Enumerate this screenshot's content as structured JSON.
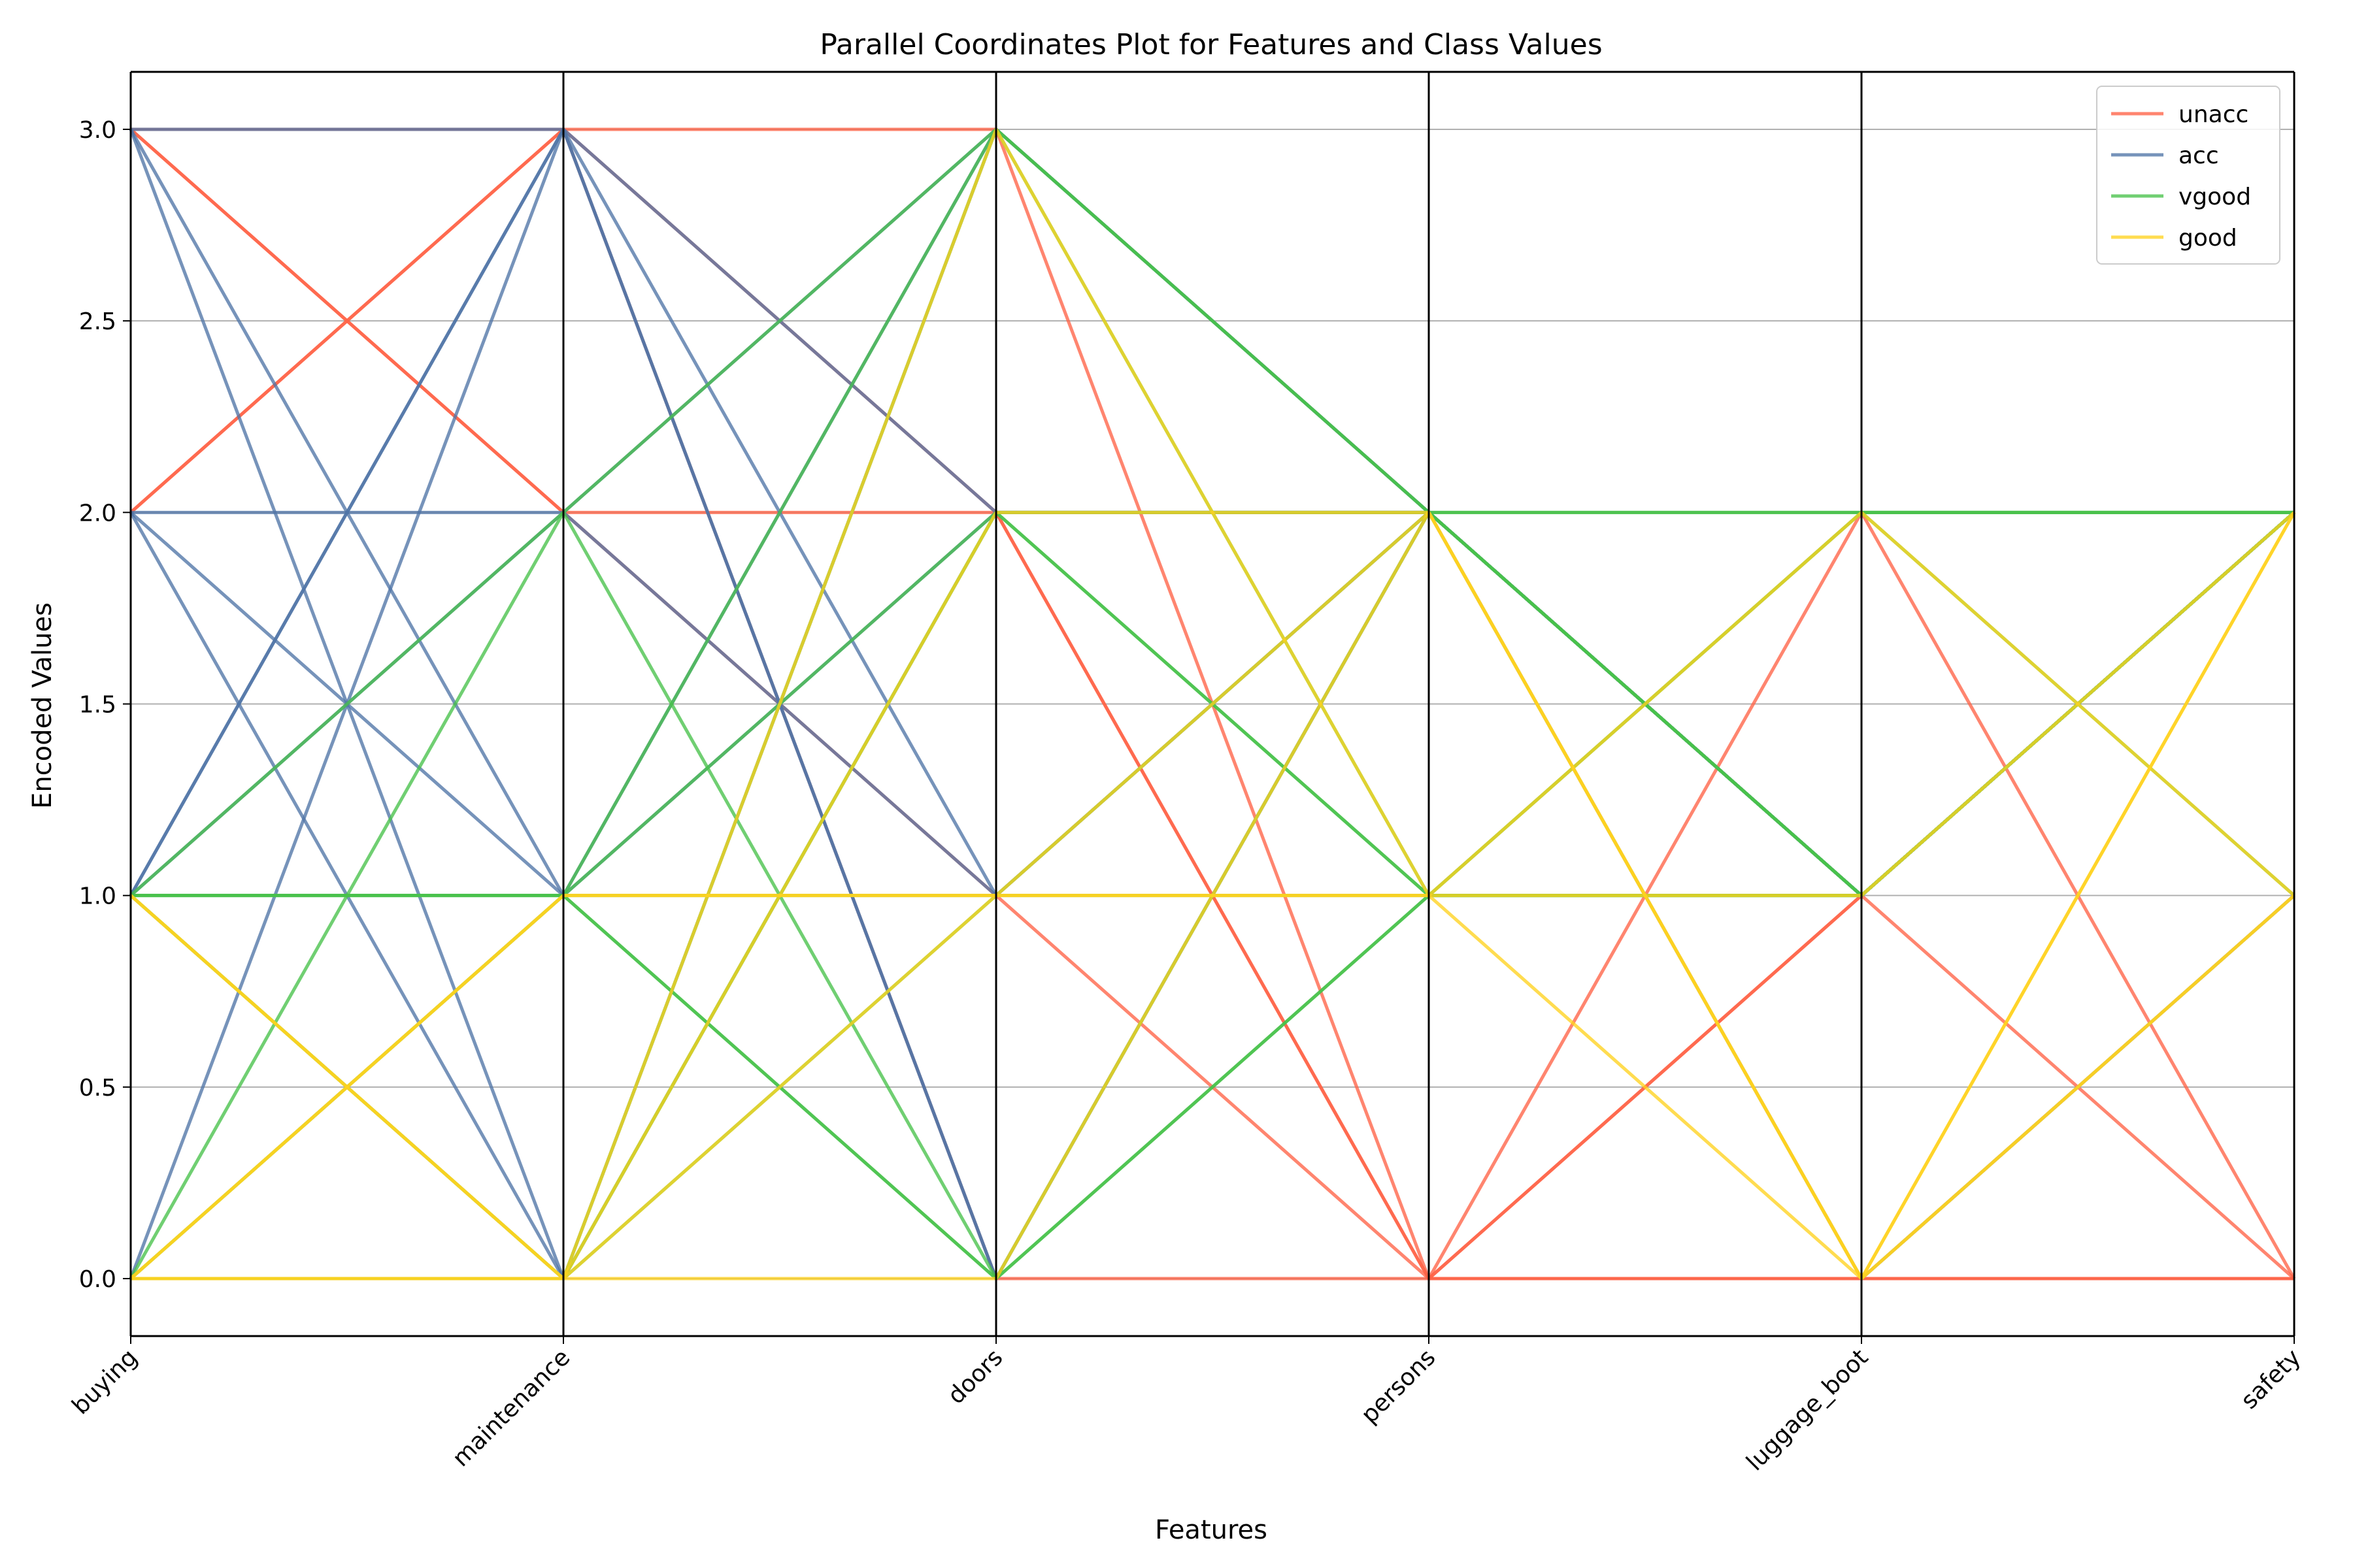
{
  "chart_data": {
    "type": "parallel_coordinates",
    "title": "Parallel Coordinates Plot for Features and Class Values",
    "xlabel": "Features",
    "ylabel": "Encoded Values",
    "features": [
      "buying",
      "maintenance",
      "doors",
      "persons",
      "luggage_boot",
      "safety"
    ],
    "yticks": [
      "0.0",
      "0.5",
      "1.0",
      "1.5",
      "2.0",
      "2.5",
      "3.0"
    ],
    "ylim": [
      -0.15,
      3.15
    ],
    "grid": "horizontal",
    "legend_placement": "top-right",
    "classes": [
      {
        "name": "unacc",
        "color": "#ff6347"
      },
      {
        "name": "acc",
        "color": "#4f74a7"
      },
      {
        "name": "vgood",
        "color": "#48c24a"
      },
      {
        "name": "good",
        "color": "#ffd21f"
      }
    ],
    "series": [
      {
        "class": "unacc",
        "values": [
          3,
          2,
          1,
          0,
          0,
          0
        ]
      },
      {
        "class": "unacc",
        "values": [
          2,
          3,
          2,
          0,
          2,
          0
        ]
      },
      {
        "class": "unacc",
        "values": [
          3,
          3,
          3,
          0,
          1,
          2
        ]
      },
      {
        "class": "unacc",
        "values": [
          2,
          3,
          0,
          0,
          0,
          0
        ]
      },
      {
        "class": "unacc",
        "values": [
          3,
          2,
          2,
          0,
          1,
          0
        ]
      },
      {
        "class": "acc",
        "values": [
          3,
          0,
          3,
          2,
          1,
          2
        ]
      },
      {
        "class": "acc",
        "values": [
          3,
          1,
          3,
          2,
          1,
          2
        ]
      },
      {
        "class": "acc",
        "values": [
          2,
          1,
          2,
          2,
          1,
          2
        ]
      },
      {
        "class": "acc",
        "values": [
          2,
          2,
          3,
          2,
          1,
          2
        ]
      },
      {
        "class": "acc",
        "values": [
          1,
          2,
          1,
          2,
          1,
          2
        ]
      },
      {
        "class": "acc",
        "values": [
          1,
          3,
          2,
          2,
          1,
          2
        ]
      },
      {
        "class": "acc",
        "values": [
          0,
          3,
          0,
          2,
          1,
          2
        ]
      },
      {
        "class": "acc",
        "values": [
          2,
          0,
          2,
          2,
          1,
          2
        ]
      },
      {
        "class": "acc",
        "values": [
          3,
          3,
          0,
          2,
          0,
          1
        ]
      },
      {
        "class": "acc",
        "values": [
          1,
          3,
          1,
          2,
          0,
          1
        ]
      },
      {
        "class": "vgood",
        "values": [
          0,
          2,
          3,
          2,
          1,
          2
        ]
      },
      {
        "class": "vgood",
        "values": [
          1,
          1,
          1,
          1,
          1,
          2
        ]
      },
      {
        "class": "vgood",
        "values": [
          1,
          2,
          0,
          1,
          2,
          2
        ]
      },
      {
        "class": "vgood",
        "values": [
          0,
          0,
          2,
          1,
          2,
          1
        ]
      },
      {
        "class": "vgood",
        "values": [
          1,
          1,
          2,
          2,
          1,
          2
        ]
      },
      {
        "class": "vgood",
        "values": [
          0,
          1,
          0,
          2,
          2,
          2
        ]
      },
      {
        "class": "vgood",
        "values": [
          1,
          0,
          3,
          1,
          1,
          2
        ]
      },
      {
        "class": "vgood",
        "values": [
          0,
          0,
          1,
          2,
          1,
          2
        ]
      },
      {
        "class": "vgood",
        "values": [
          1,
          1,
          0,
          1,
          1,
          2
        ]
      },
      {
        "class": "vgood",
        "values": [
          0,
          1,
          3,
          2,
          2,
          2
        ]
      },
      {
        "class": "vgood",
        "values": [
          1,
          0,
          2,
          1,
          1,
          2
        ]
      },
      {
        "class": "good",
        "values": [
          0,
          0,
          3,
          1,
          0,
          2
        ]
      },
      {
        "class": "good",
        "values": [
          0,
          1,
          1,
          2,
          0,
          1
        ]
      },
      {
        "class": "good",
        "values": [
          1,
          0,
          0,
          2,
          0,
          2
        ]
      },
      {
        "class": "good",
        "values": [
          0,
          1,
          1,
          1,
          2,
          1
        ]
      },
      {
        "class": "good",
        "values": [
          0,
          0,
          1,
          1,
          1,
          2
        ]
      },
      {
        "class": "good",
        "values": [
          1,
          0,
          2,
          2,
          0,
          1
        ]
      }
    ]
  }
}
